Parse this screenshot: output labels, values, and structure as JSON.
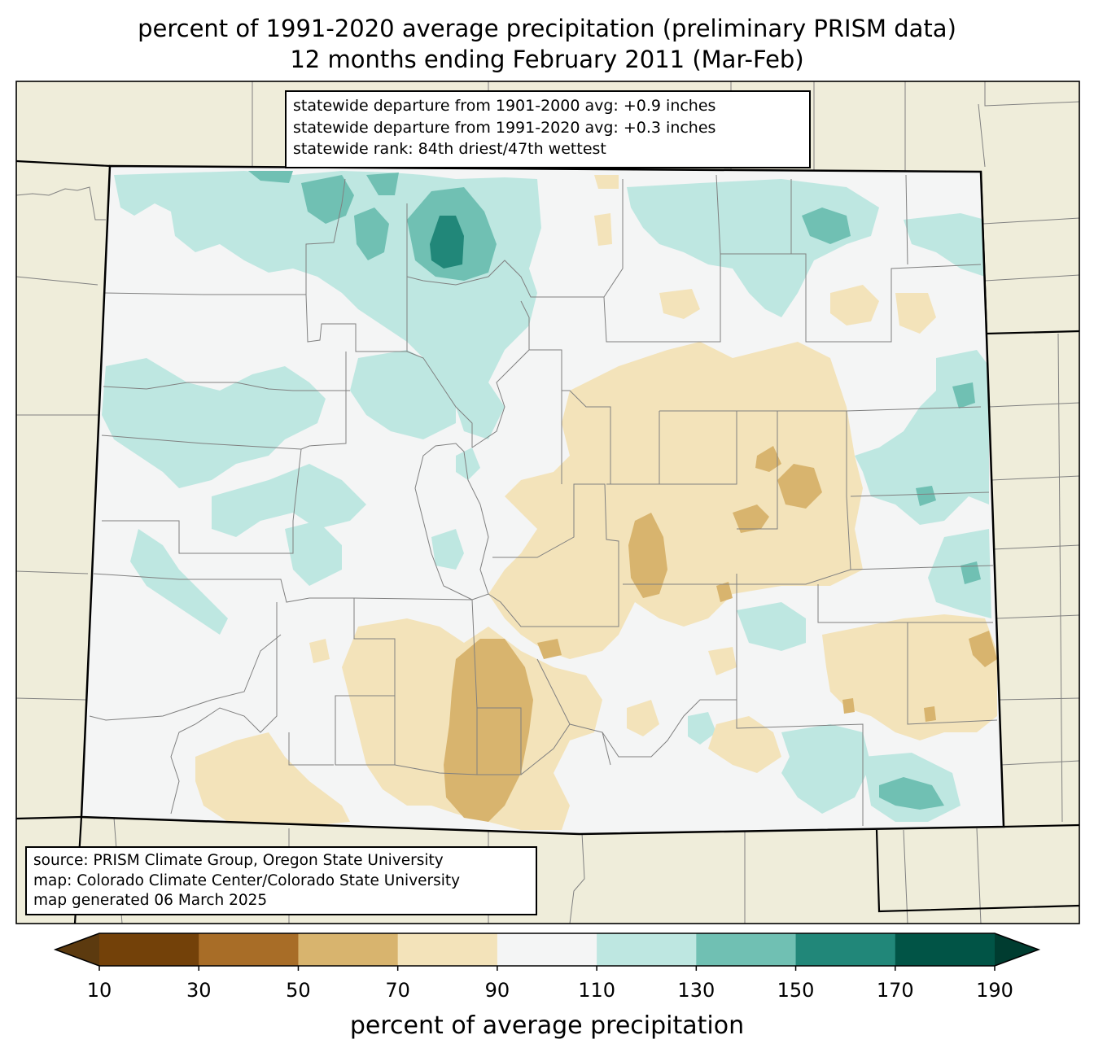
{
  "title": {
    "line1": "percent of 1991-2020 average precipitation (preliminary PRISM data)",
    "line2": "12 months ending February 2011 (Mar-Feb)"
  },
  "stats": {
    "line1": "statewide departure from 1901-2000 avg: +0.9 inches",
    "line2": "statewide departure from 1991-2020 avg: +0.3 inches",
    "line3": "statewide rank: 84th driest/47th wettest"
  },
  "source": {
    "line1": "source: PRISM Climate Group, Oregon State University",
    "line2": "map: Colorado Climate Center/Colorado State University",
    "line3": "map generated 06 March 2025"
  },
  "colorbar": {
    "label": "percent of average precipitation",
    "ticks": [
      "10",
      "30",
      "50",
      "70",
      "90",
      "110",
      "130",
      "150",
      "170",
      "190"
    ],
    "colors": [
      "#5c3a0f",
      "#734109",
      "#a86d27",
      "#d8b46e",
      "#f3e3ba",
      "#f4f5f5",
      "#bee7e1",
      "#70c0b3",
      "#218779",
      "#015446",
      "#003c30"
    ]
  },
  "map_colors": {
    "background": "#efedda",
    "state_fill": "#f4f5f5",
    "borders": "#000000",
    "county_lines": "#808080"
  }
}
